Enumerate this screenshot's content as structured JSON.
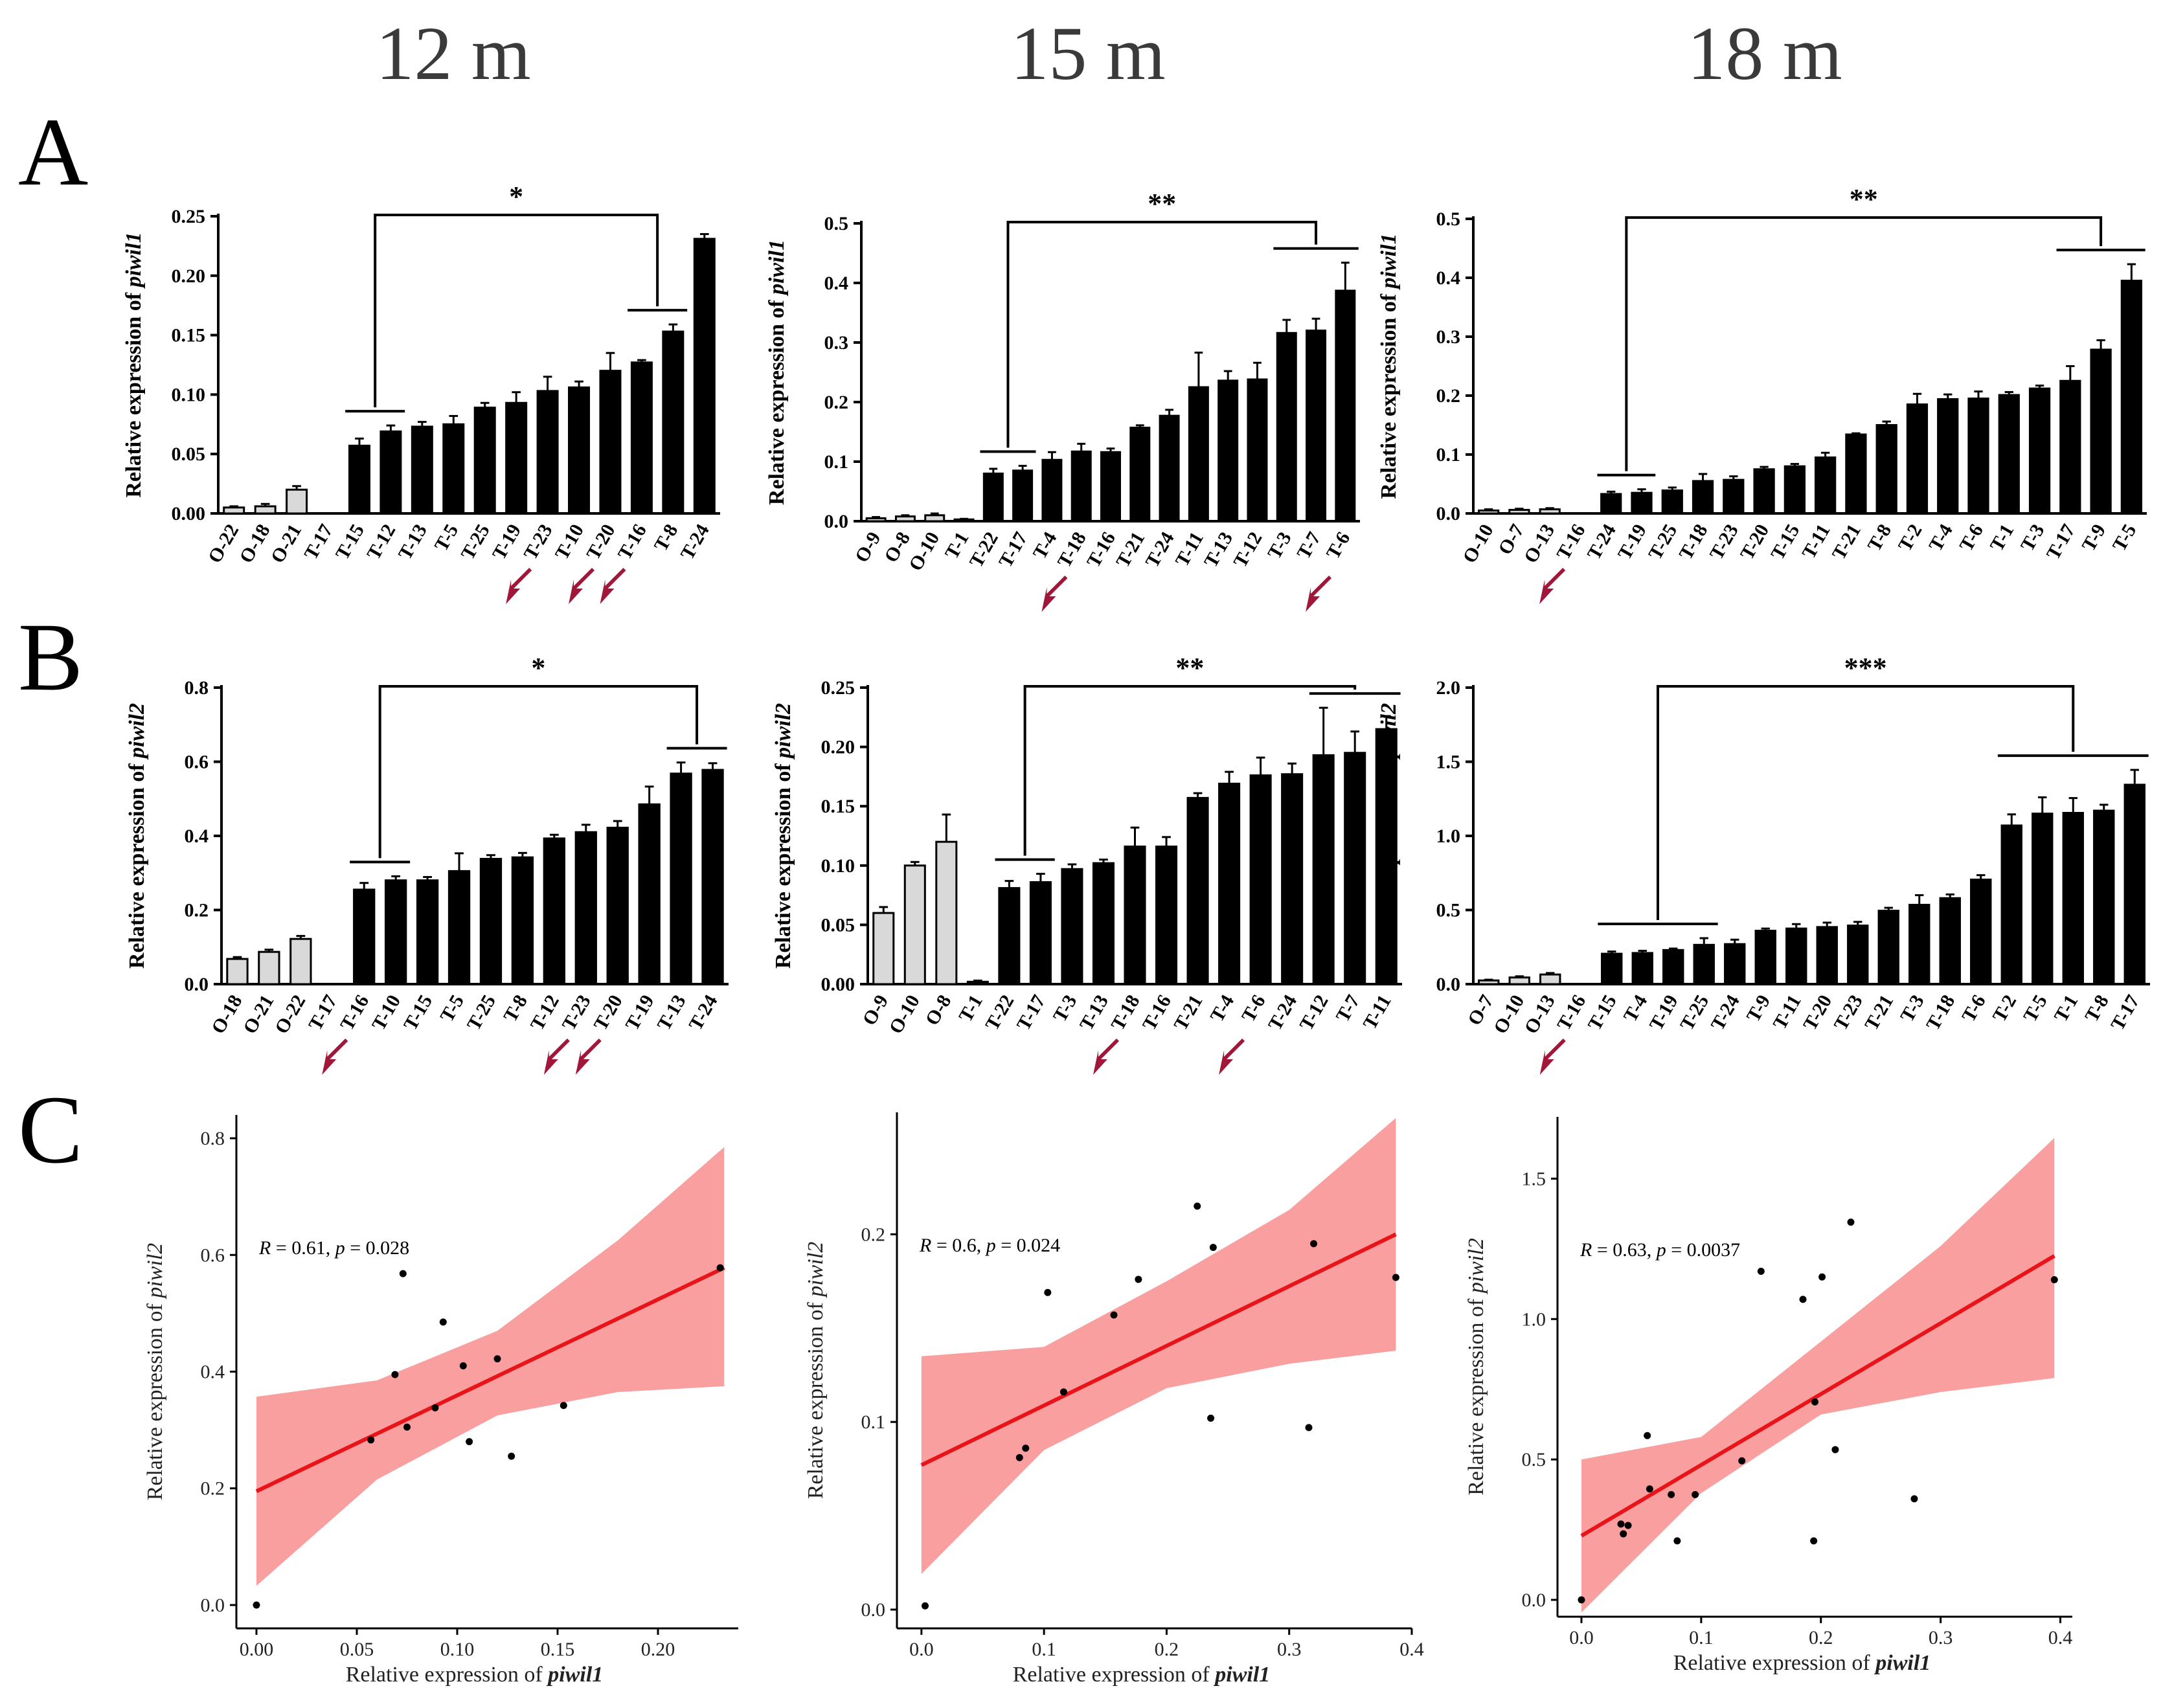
{
  "columns": [
    "12 m",
    "15 m",
    "18 m"
  ],
  "panel_letters": [
    "A",
    "B",
    "C"
  ],
  "chart_data": [
    {
      "id": "A1",
      "type": "bar",
      "panel": "A",
      "column": "12 m",
      "ylabel_prefix": "Relative expression of ",
      "ylabel_gene": "piwil1",
      "ylim": [
        0,
        0.25
      ],
      "yticks": [
        0.0,
        0.05,
        0.1,
        0.15,
        0.2,
        0.25
      ],
      "ytick_labels": [
        "0.00",
        "0.05",
        "0.10",
        "0.15",
        "0.20",
        "0.25"
      ],
      "categories": [
        "O-22",
        "O-18",
        "O-21",
        "T-17",
        "T-15",
        "T-12",
        "T-13",
        "T-5",
        "T-25",
        "T-19",
        "T-23",
        "T-10",
        "T-20",
        "T-16",
        "T-8",
        "T-24"
      ],
      "values": [
        0.005,
        0.006,
        0.02,
        0.0,
        0.057,
        0.069,
        0.073,
        0.075,
        0.089,
        0.093,
        0.103,
        0.106,
        0.12,
        0.127,
        0.153,
        0.231
      ],
      "errors": [
        0.001,
        0.002,
        0.003,
        0,
        0.006,
        0.005,
        0.004,
        0.007,
        0.004,
        0.009,
        0.012,
        0.005,
        0.015,
        0.002,
        0.006,
        0.004
      ],
      "light_count": 3,
      "arrows": [
        "T-19",
        "T-10",
        "T-20"
      ],
      "significance": {
        "label": "*",
        "low_group": [
          "T-15",
          "T-12"
        ],
        "high_group": [
          "T-16",
          "T-8"
        ]
      }
    },
    {
      "id": "A2",
      "type": "bar",
      "panel": "A",
      "column": "15 m",
      "ylabel_prefix": "Relative expression of ",
      "ylabel_gene": "piwil1",
      "ylim": [
        0,
        0.5
      ],
      "yticks": [
        0.0,
        0.1,
        0.2,
        0.3,
        0.4,
        0.5
      ],
      "ytick_labels": [
        "0.0",
        "0.1",
        "0.2",
        "0.3",
        "0.4",
        "0.5"
      ],
      "categories": [
        "O-9",
        "O-8",
        "O-10",
        "T-1",
        "T-22",
        "T-17",
        "T-4",
        "T-18",
        "T-16",
        "T-21",
        "T-24",
        "T-11",
        "T-13",
        "T-12",
        "T-3",
        "T-7",
        "T-6"
      ],
      "values": [
        0.005,
        0.008,
        0.01,
        0.003,
        0.08,
        0.085,
        0.103,
        0.117,
        0.116,
        0.157,
        0.177,
        0.225,
        0.236,
        0.238,
        0.316,
        0.32,
        0.387
      ],
      "errors": [
        0.002,
        0.002,
        0.003,
        0.001,
        0.008,
        0.008,
        0.013,
        0.013,
        0.006,
        0.004,
        0.01,
        0.058,
        0.016,
        0.028,
        0.022,
        0.02,
        0.047
      ],
      "light_count": 3,
      "arrows": [
        "T-4",
        "T-7"
      ],
      "significance": {
        "label": "**",
        "low_group": [
          "T-22",
          "T-17"
        ],
        "high_group": [
          "T-3",
          "T-7",
          "T-6"
        ]
      }
    },
    {
      "id": "A3",
      "type": "bar",
      "panel": "A",
      "column": "18 m",
      "ylabel_prefix": "Relative expression of ",
      "ylabel_gene": "piwil1",
      "ylim": [
        0,
        0.5
      ],
      "yticks": [
        0.0,
        0.1,
        0.2,
        0.3,
        0.4,
        0.5
      ],
      "ytick_labels": [
        "0.0",
        "0.1",
        "0.2",
        "0.3",
        "0.4",
        "0.5"
      ],
      "categories": [
        "O-10",
        "O-7",
        "O-13",
        "T-16",
        "T-24",
        "T-19",
        "T-25",
        "T-18",
        "T-23",
        "T-20",
        "T-15",
        "T-11",
        "T-21",
        "T-8",
        "T-2",
        "T-4",
        "T-6",
        "T-1",
        "T-3",
        "T-17",
        "T-9",
        "T-5"
      ],
      "values": [
        0.005,
        0.006,
        0.007,
        0.0,
        0.033,
        0.035,
        0.039,
        0.055,
        0.057,
        0.075,
        0.08,
        0.095,
        0.134,
        0.15,
        0.185,
        0.194,
        0.195,
        0.201,
        0.212,
        0.225,
        0.278,
        0.395
      ],
      "errors": [
        0.002,
        0.002,
        0.002,
        0,
        0.004,
        0.006,
        0.005,
        0.012,
        0.006,
        0.004,
        0.004,
        0.008,
        0.002,
        0.006,
        0.018,
        0.008,
        0.012,
        0.005,
        0.005,
        0.025,
        0.016,
        0.028
      ],
      "light_count": 3,
      "arrows": [
        "O-13"
      ],
      "significance": {
        "label": "**",
        "low_group": [
          "T-24",
          "T-19"
        ],
        "high_group": [
          "T-17",
          "T-9",
          "T-5"
        ]
      }
    },
    {
      "id": "B1",
      "type": "bar",
      "panel": "B",
      "column": "12 m",
      "ylabel_prefix": "Relative expression of ",
      "ylabel_gene": "piwil2",
      "ylim": [
        0,
        0.8
      ],
      "yticks": [
        0.0,
        0.2,
        0.4,
        0.6,
        0.8
      ],
      "ytick_labels": [
        "0.0",
        "0.2",
        "0.4",
        "0.6",
        "0.8"
      ],
      "categories": [
        "O-18",
        "O-21",
        "O-22",
        "T-17",
        "T-16",
        "T-10",
        "T-15",
        "T-5",
        "T-25",
        "T-8",
        "T-12",
        "T-23",
        "T-20",
        "T-19",
        "T-13",
        "T-24"
      ],
      "values": [
        0.068,
        0.087,
        0.122,
        0.0,
        0.255,
        0.28,
        0.28,
        0.305,
        0.338,
        0.342,
        0.393,
        0.41,
        0.422,
        0.485,
        0.568,
        0.578
      ],
      "errors": [
        0.005,
        0.006,
        0.008,
        0,
        0.018,
        0.011,
        0.009,
        0.048,
        0.01,
        0.012,
        0.01,
        0.02,
        0.018,
        0.048,
        0.03,
        0.018
      ],
      "light_count": 3,
      "arrows": [
        "T-17",
        "T-12",
        "T-23"
      ],
      "significance": {
        "label": "*",
        "low_group": [
          "T-16",
          "T-10"
        ],
        "high_group": [
          "T-13",
          "T-24"
        ]
      }
    },
    {
      "id": "B2",
      "type": "bar",
      "panel": "B",
      "column": "15 m",
      "ylabel_prefix": "Relative expression of ",
      "ylabel_gene": "piwil2",
      "ylim": [
        0,
        0.25
      ],
      "yticks": [
        0.0,
        0.05,
        0.1,
        0.15,
        0.2,
        0.25
      ],
      "ytick_labels": [
        "0.00",
        "0.05",
        "0.10",
        "0.15",
        "0.20",
        "0.25"
      ],
      "categories": [
        "O-9",
        "O-10",
        "O-8",
        "T-1",
        "T-22",
        "T-17",
        "T-3",
        "T-13",
        "T-18",
        "T-16",
        "T-21",
        "T-4",
        "T-6",
        "T-24",
        "T-12",
        "T-7",
        "T-11"
      ],
      "values": [
        0.06,
        0.1,
        0.12,
        0.002,
        0.081,
        0.086,
        0.097,
        0.102,
        0.116,
        0.116,
        0.157,
        0.169,
        0.176,
        0.177,
        0.193,
        0.195,
        0.215
      ],
      "errors": [
        0.005,
        0.003,
        0.023,
        0.001,
        0.006,
        0.007,
        0.004,
        0.003,
        0.016,
        0.008,
        0.004,
        0.01,
        0.015,
        0.009,
        0.04,
        0.018,
        0.011
      ],
      "light_count": 3,
      "arrows": [
        "T-13",
        "T-4"
      ],
      "significance": {
        "label": "**",
        "low_group": [
          "T-22",
          "T-17"
        ],
        "high_group": [
          "T-12",
          "T-7",
          "T-11"
        ]
      }
    },
    {
      "id": "B3",
      "type": "bar",
      "panel": "B",
      "column": "18 m",
      "ylabel_prefix": "Relative expression of ",
      "ylabel_gene": "piwil2",
      "ylim": [
        0,
        2.0
      ],
      "yticks": [
        0.0,
        0.5,
        1.0,
        1.5,
        2.0
      ],
      "ytick_labels": [
        "0.0",
        "0.5",
        "1.0",
        "1.5",
        "2.0"
      ],
      "categories": [
        "O-7",
        "O-10",
        "O-13",
        "T-16",
        "T-15",
        "T-4",
        "T-19",
        "T-25",
        "T-24",
        "T-9",
        "T-11",
        "T-20",
        "T-23",
        "T-21",
        "T-3",
        "T-18",
        "T-6",
        "T-2",
        "T-5",
        "T-1",
        "T-8",
        "T-17"
      ],
      "values": [
        0.025,
        0.045,
        0.065,
        0.0,
        0.205,
        0.21,
        0.23,
        0.265,
        0.27,
        0.36,
        0.375,
        0.385,
        0.395,
        0.495,
        0.535,
        0.58,
        0.705,
        1.07,
        1.15,
        1.155,
        1.17,
        1.345
      ],
      "errors": [
        0.005,
        0.008,
        0.01,
        0,
        0.015,
        0.015,
        0.01,
        0.045,
        0.03,
        0.015,
        0.03,
        0.03,
        0.025,
        0.02,
        0.065,
        0.025,
        0.03,
        0.075,
        0.11,
        0.1,
        0.04,
        0.1
      ],
      "light_count": 3,
      "arrows": [
        "O-13"
      ],
      "significance": {
        "label": "***",
        "low_group": [
          "T-15",
          "T-4",
          "T-19",
          "T-25"
        ],
        "high_group": [
          "T-2",
          "T-5",
          "T-1",
          "T-8",
          "T-17"
        ]
      }
    },
    {
      "id": "C1",
      "type": "scatter",
      "panel": "C",
      "column": "12 m",
      "xlabel_prefix": "Relative expression of ",
      "xlabel_gene": "piwil1",
      "ylabel_prefix": "Relative expression of  ",
      "ylabel_gene": "piwil2",
      "xlim": [
        -0.01,
        0.24
      ],
      "ylim": [
        -0.04,
        0.84
      ],
      "xticks": [
        0.0,
        0.05,
        0.1,
        0.15,
        0.2
      ],
      "xtick_labels": [
        "0.00",
        "0.05",
        "0.10",
        "0.15",
        "0.20"
      ],
      "yticks": [
        0.0,
        0.2,
        0.4,
        0.6,
        0.8
      ],
      "ytick_labels": [
        "0.0",
        "0.2",
        "0.4",
        "0.6",
        "0.8"
      ],
      "points": [
        [
          0.0,
          0.0
        ],
        [
          0.057,
          0.283
        ],
        [
          0.069,
          0.395
        ],
        [
          0.073,
          0.568
        ],
        [
          0.075,
          0.305
        ],
        [
          0.089,
          0.338
        ],
        [
          0.093,
          0.485
        ],
        [
          0.103,
          0.41
        ],
        [
          0.106,
          0.28
        ],
        [
          0.12,
          0.422
        ],
        [
          0.127,
          0.255
        ],
        [
          0.153,
          0.342
        ],
        [
          0.231,
          0.578
        ]
      ],
      "fit": {
        "x0": 0.0,
        "y0": 0.195,
        "x1": 0.233,
        "y1": 0.578
      },
      "ci_upper": {
        "x": [
          0.0,
          0.06,
          0.12,
          0.18,
          0.233
        ],
        "y": [
          0.357,
          0.385,
          0.47,
          0.625,
          0.785
        ]
      },
      "ci_lower": {
        "x": [
          0.0,
          0.06,
          0.12,
          0.18,
          0.233
        ],
        "y": [
          0.033,
          0.215,
          0.325,
          0.365,
          0.375
        ]
      },
      "annotation": {
        "R": "0.61",
        "p": "0.028"
      }
    },
    {
      "id": "C2",
      "type": "scatter",
      "panel": "C",
      "column": "15 m",
      "xlabel_prefix": "Relative expression of ",
      "xlabel_gene": "piwil1",
      "ylabel_prefix": "Relative expression of  ",
      "ylabel_gene": "piwil2",
      "xlim": [
        -0.02,
        0.4
      ],
      "ylim": [
        -0.01,
        0.265
      ],
      "xticks": [
        0.0,
        0.1,
        0.2,
        0.3,
        0.4
      ],
      "xtick_labels": [
        "0.0",
        "0.1",
        "0.2",
        "0.3",
        "0.4"
      ],
      "yticks": [
        0.0,
        0.1,
        0.2
      ],
      "ytick_labels": [
        "0.0",
        "0.1",
        "0.2"
      ],
      "points": [
        [
          0.003,
          0.002
        ],
        [
          0.08,
          0.081
        ],
        [
          0.085,
          0.086
        ],
        [
          0.103,
          0.169
        ],
        [
          0.116,
          0.116
        ],
        [
          0.157,
          0.157
        ],
        [
          0.177,
          0.176
        ],
        [
          0.225,
          0.215
        ],
        [
          0.236,
          0.102
        ],
        [
          0.238,
          0.193
        ],
        [
          0.316,
          0.097
        ],
        [
          0.32,
          0.195
        ],
        [
          0.387,
          0.177
        ]
      ],
      "fit": {
        "x0": 0.0,
        "y0": 0.077,
        "x1": 0.387,
        "y1": 0.2
      },
      "ci_upper": {
        "x": [
          0.0,
          0.1,
          0.2,
          0.3,
          0.387
        ],
        "y": [
          0.135,
          0.14,
          0.175,
          0.213,
          0.262
        ]
      },
      "ci_lower": {
        "x": [
          0.0,
          0.1,
          0.2,
          0.3,
          0.387
        ],
        "y": [
          0.019,
          0.085,
          0.118,
          0.131,
          0.138
        ]
      },
      "annotation": {
        "R": "0.6",
        "p": "0.024"
      }
    },
    {
      "id": "C3",
      "type": "scatter",
      "panel": "C",
      "column": "18 m",
      "xlabel_prefix": "Relative expression of  ",
      "xlabel_gene": "piwil1",
      "ylabel_prefix": "Relative expression of  ",
      "ylabel_gene": "piwil2",
      "xlim": [
        -0.02,
        0.41
      ],
      "ylim": [
        -0.06,
        1.72
      ],
      "xticks": [
        0.0,
        0.1,
        0.2,
        0.3,
        0.4
      ],
      "xtick_labels": [
        "0.0",
        "0.1",
        "0.2",
        "0.3",
        "0.4"
      ],
      "yticks": [
        0.0,
        0.5,
        1.0,
        1.5
      ],
      "ytick_labels": [
        "0.0",
        "0.5",
        "1.0",
        "1.5"
      ],
      "points": [
        [
          0.0,
          0.0
        ],
        [
          0.033,
          0.27
        ],
        [
          0.035,
          0.235
        ],
        [
          0.039,
          0.265
        ],
        [
          0.055,
          0.585
        ],
        [
          0.057,
          0.395
        ],
        [
          0.075,
          0.375
        ],
        [
          0.08,
          0.21
        ],
        [
          0.095,
          0.375
        ],
        [
          0.134,
          0.495
        ],
        [
          0.15,
          1.17
        ],
        [
          0.185,
          1.07
        ],
        [
          0.194,
          0.21
        ],
        [
          0.195,
          0.705
        ],
        [
          0.201,
          1.15
        ],
        [
          0.212,
          0.535
        ],
        [
          0.225,
          1.345
        ],
        [
          0.278,
          0.36
        ],
        [
          0.395,
          1.14
        ]
      ],
      "fit": {
        "x0": 0.0,
        "y0": 0.228,
        "x1": 0.395,
        "y1": 1.225
      },
      "ci_upper": {
        "x": [
          0.0,
          0.1,
          0.2,
          0.3,
          0.395
        ],
        "y": [
          0.5,
          0.58,
          0.92,
          1.26,
          1.645
        ]
      },
      "ci_lower": {
        "x": [
          0.0,
          0.1,
          0.2,
          0.3,
          0.395
        ],
        "y": [
          -0.045,
          0.38,
          0.66,
          0.74,
          0.79
        ]
      },
      "annotation": {
        "R": "0.63",
        "p": "0.0037"
      }
    }
  ]
}
